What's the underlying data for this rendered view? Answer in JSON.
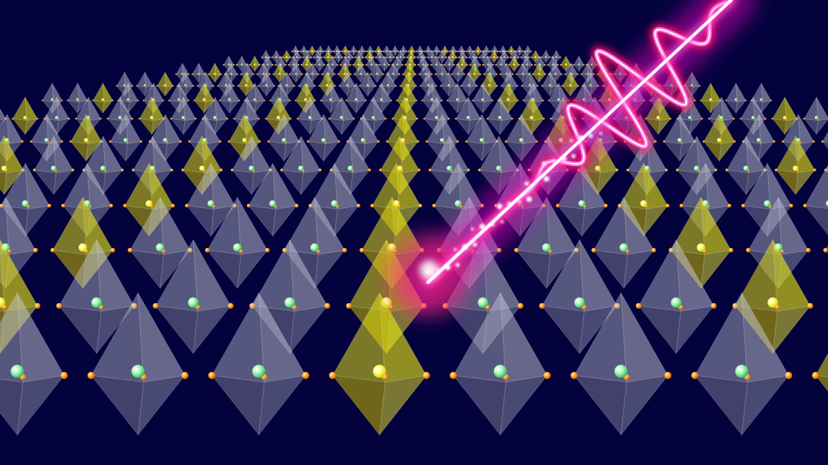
{
  "scene": {
    "background_color": "#03023d",
    "lattice": {
      "row_count": 13,
      "highlighted_rows": [
        0,
        2,
        6,
        11
      ],
      "colors": {
        "octahedron_gray": "#c9cbd9",
        "octahedron_yellow": "#e8e614",
        "center_atom_green": "#8ef0a0",
        "center_atom_yellow": "#ffff70",
        "corner_atom_orange": "#ff9a1c"
      }
    },
    "pulse": {
      "core_color": "#ffffff",
      "glow_color": "#ff00cc",
      "outline_color": "#ff1060"
    }
  }
}
